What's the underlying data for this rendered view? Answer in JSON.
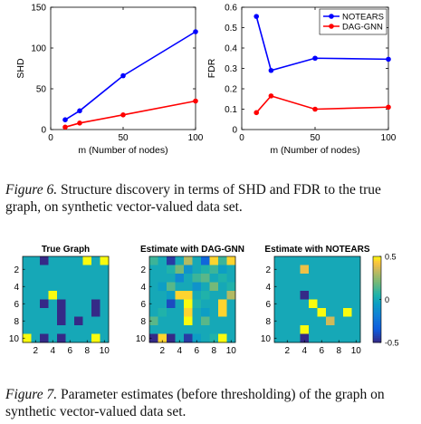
{
  "figure6": {
    "caption_label": "Figure 6.",
    "caption_text": " Structure discovery in terms of SHD and FDR to the true graph, on synthetic vector-valued data set.",
    "charts": [
      {
        "type": "line",
        "xlabel": "m (Number of nodes)",
        "ylabel": "SHD",
        "xlim": [
          0,
          100
        ],
        "ylim": [
          0,
          150
        ],
        "xticks": [
          0,
          50,
          100
        ],
        "yticks": [
          0,
          50,
          100,
          150
        ],
        "grid": false,
        "series": [
          {
            "name": "NOTEARS",
            "color": "#0000ff",
            "marker": "circle",
            "x": [
              10,
              20,
              50,
              100
            ],
            "y": [
              12,
              23,
              66,
              120
            ]
          },
          {
            "name": "DAG-GNN",
            "color": "#ff0000",
            "marker": "circle",
            "x": [
              10,
              20,
              50,
              100
            ],
            "y": [
              3,
              8,
              18,
              35
            ]
          }
        ]
      },
      {
        "type": "line",
        "xlabel": "m (Number of nodes)",
        "ylabel": "FDR",
        "xlim": [
          0,
          100
        ],
        "ylim": [
          0,
          0.6
        ],
        "xticks": [
          0,
          50,
          100
        ],
        "yticks": [
          0,
          0.1,
          0.2,
          0.3,
          0.4,
          0.5,
          0.6
        ],
        "grid": false,
        "legend": "top-right",
        "series": [
          {
            "name": "NOTEARS",
            "color": "#0000ff",
            "marker": "circle",
            "x": [
              10,
              20,
              50,
              100
            ],
            "y": [
              0.555,
              0.29,
              0.35,
              0.345
            ]
          },
          {
            "name": "DAG-GNN",
            "color": "#ff0000",
            "marker": "circle",
            "x": [
              10,
              20,
              50,
              100
            ],
            "y": [
              0.083,
              0.165,
              0.1,
              0.11
            ]
          }
        ]
      }
    ]
  },
  "figure7": {
    "caption_label": "Figure 7.",
    "caption_text": " Parameter estimates (before thresholding) of the graph on synthetic vector-valued data set.",
    "chart_data": [
      {
        "type": "heatmap",
        "title": "True Graph",
        "xticks": [
          2,
          4,
          6,
          8,
          10
        ],
        "yticks": [
          2,
          4,
          6,
          8,
          10
        ],
        "colorbar": {
          "range": [
            -0.5,
            0.5
          ],
          "ticks": [
            0.5,
            0,
            -0.5
          ]
        },
        "values": [
          [
            0,
            0,
            -0.5,
            0,
            0,
            0,
            0,
            0.5,
            0,
            0.5
          ],
          [
            0,
            0,
            0,
            0,
            0,
            0,
            0,
            0,
            0,
            0
          ],
          [
            0,
            0,
            0,
            0,
            0,
            0,
            0,
            0,
            0,
            0
          ],
          [
            0,
            0,
            0,
            0,
            0,
            0,
            0,
            0,
            0,
            0
          ],
          [
            0,
            0,
            0,
            0.5,
            0,
            0,
            0,
            0,
            0,
            0
          ],
          [
            0,
            0,
            -0.5,
            0,
            -0.5,
            0,
            0,
            0,
            -0.5,
            0
          ],
          [
            0,
            0,
            0,
            0,
            -0.5,
            0,
            0,
            0,
            -0.5,
            0
          ],
          [
            0,
            0,
            0,
            0,
            -0.5,
            0,
            -0.5,
            0,
            0,
            0
          ],
          [
            0,
            0,
            0,
            0,
            0,
            0,
            0,
            0,
            0,
            0
          ],
          [
            0.5,
            0,
            -0.5,
            0,
            -0.5,
            0,
            0,
            0,
            0.5,
            0
          ]
        ]
      },
      {
        "type": "heatmap",
        "title": "Estimate with DAG-GNN",
        "xticks": [
          2,
          4,
          6,
          8,
          10
        ],
        "yticks": [
          2,
          4,
          6,
          8,
          10
        ],
        "values": [
          [
            0.1,
            0,
            -0.45,
            0,
            0.3,
            0,
            -0.3,
            0.45,
            0.1,
            0.45
          ],
          [
            0,
            0,
            0.05,
            0.2,
            -0.1,
            0,
            0.05,
            0.1,
            -0.05,
            0
          ],
          [
            0,
            0,
            0,
            -0.15,
            0,
            0.1,
            0.15,
            0,
            0.05,
            0
          ],
          [
            0,
            -0.05,
            0.15,
            0,
            0,
            -0.1,
            0,
            0.2,
            0,
            0.05
          ],
          [
            0,
            0,
            -0.05,
            0.45,
            0.45,
            0,
            0.05,
            0,
            0,
            0.3
          ],
          [
            0,
            0,
            -0.4,
            0,
            0.5,
            0.05,
            0,
            0,
            0.45,
            0
          ],
          [
            0,
            0.05,
            0,
            0,
            0.45,
            0,
            -0.05,
            0,
            0.45,
            0
          ],
          [
            0.15,
            0,
            0,
            0,
            0.5,
            0,
            0.15,
            0,
            0,
            0
          ],
          [
            0,
            0,
            0,
            0,
            0,
            0,
            0,
            0,
            0,
            0
          ],
          [
            -0.5,
            0.45,
            -0.5,
            0,
            -0.45,
            -0.05,
            0,
            0.05,
            0.5,
            0
          ]
        ]
      },
      {
        "type": "heatmap",
        "title": "Estimate with NOTEARS",
        "xticks": [
          2,
          4,
          6,
          8,
          10
        ],
        "yticks": [
          2,
          4,
          6,
          8,
          10
        ],
        "values": [
          [
            0,
            0,
            0,
            0,
            0,
            0,
            0,
            0,
            0,
            0
          ],
          [
            0,
            0,
            0,
            0.4,
            0,
            0,
            0,
            0,
            0,
            0
          ],
          [
            0,
            0,
            0,
            0,
            0,
            0,
            0,
            0,
            0,
            0
          ],
          [
            0,
            0,
            0,
            0,
            0,
            0,
            0,
            0,
            0,
            0
          ],
          [
            0,
            0,
            0,
            -0.5,
            0,
            0,
            0,
            0,
            0,
            0
          ],
          [
            0,
            0,
            0,
            0,
            0.5,
            0,
            0,
            0,
            0,
            0
          ],
          [
            0,
            0,
            0,
            0,
            0,
            0.5,
            0,
            0,
            0.5,
            0
          ],
          [
            0,
            0,
            0,
            0,
            0,
            0,
            0.35,
            0,
            0,
            0
          ],
          [
            0,
            0,
            0,
            0.5,
            0,
            0,
            0,
            0,
            0,
            0
          ],
          [
            0,
            0,
            0,
            -0.5,
            0,
            0,
            0,
            0,
            0,
            0
          ]
        ]
      }
    ]
  },
  "colors": {
    "notears": "#0000ff",
    "daggnn": "#ff0000",
    "parula_low": "#352a87",
    "parula_mid": "#20b2aa",
    "parula_high": "#f9fb0e"
  }
}
